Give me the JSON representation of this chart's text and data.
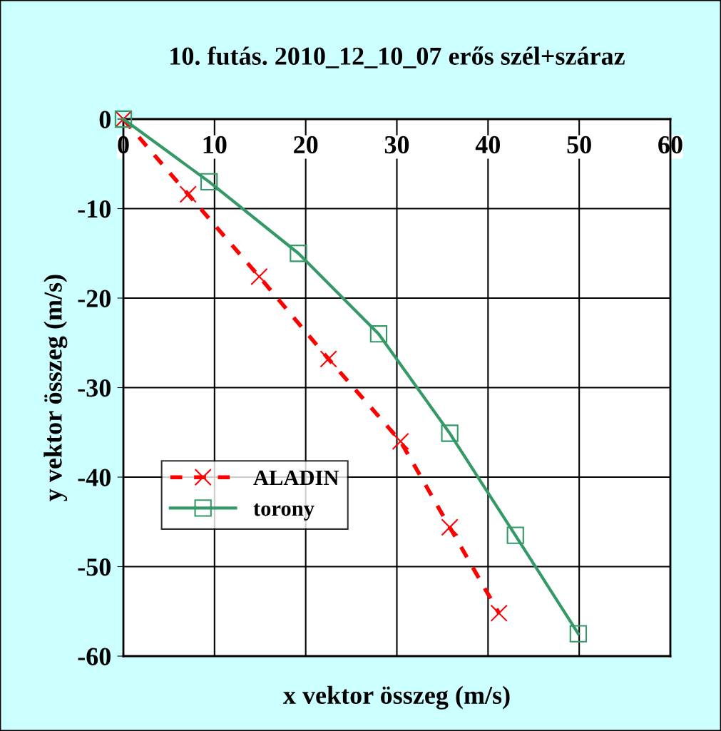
{
  "chart_data": {
    "type": "line",
    "title": "10. futás. 2010_12_10_07 erős szél+száraz",
    "xlabel": "x vektor összeg (m/s)",
    "ylabel": "y vektor összeg (m/s)",
    "xlim": [
      0,
      60
    ],
    "xticks": [
      0,
      10,
      20,
      30,
      40,
      50,
      60
    ],
    "ylim": [
      -60,
      0
    ],
    "yticks": [
      -60,
      -50,
      -40,
      -30,
      -20,
      -10,
      0
    ],
    "grid": true,
    "legend": "left",
    "series": [
      {
        "name": "ALADIN",
        "color": "#ff0000",
        "marker": "cross",
        "line_style": "dashed",
        "x": [
          0,
          7.1,
          14.9,
          22.5,
          30.4,
          35.8,
          41.2
        ],
        "values": [
          0,
          -8.4,
          -17.6,
          -26.8,
          -36.0,
          -45.6,
          -55.2
        ]
      },
      {
        "name": "torony",
        "color": "#339966",
        "marker": "square",
        "line_style": "solid",
        "x": [
          0,
          9.4,
          19.2,
          28.0,
          35.8,
          43.0,
          49.9
        ],
        "values": [
          0,
          -7.0,
          -15.0,
          -24.0,
          -35.1,
          -46.5,
          -57.5
        ]
      }
    ]
  }
}
